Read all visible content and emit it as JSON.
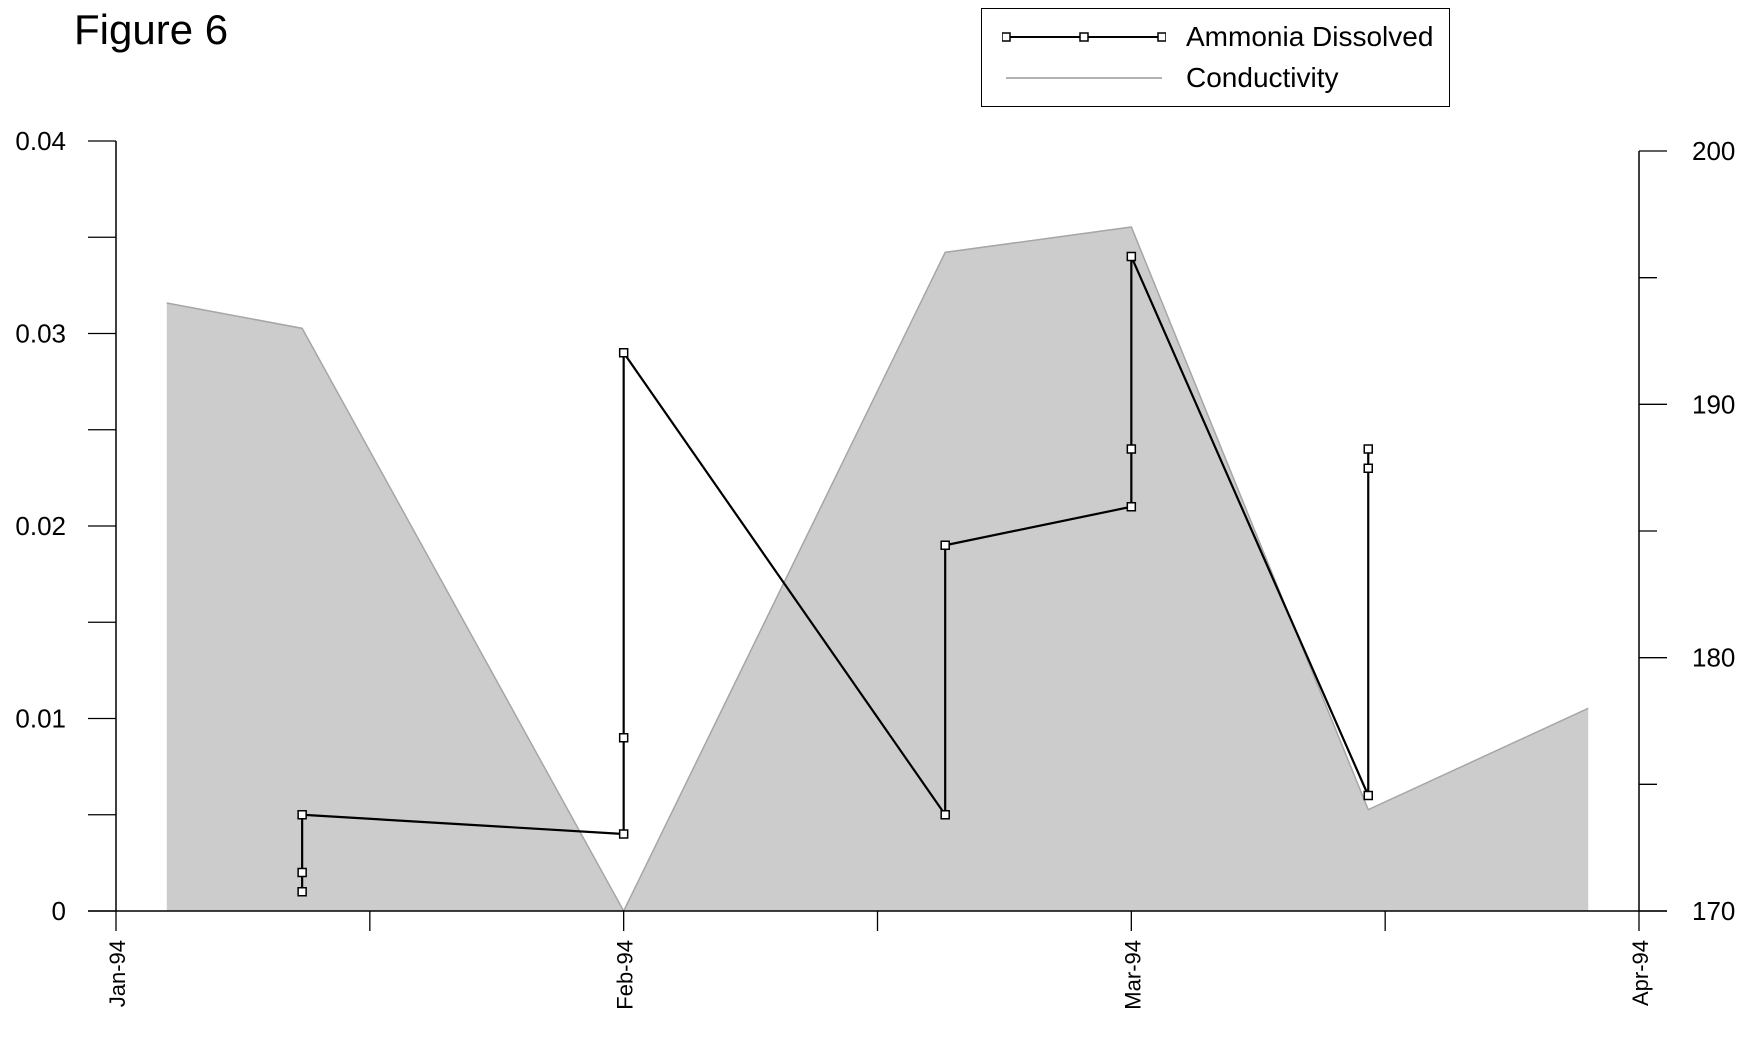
{
  "figure_label": "Figure 6",
  "legend": {
    "items": [
      {
        "label": "Ammonia Dissolved",
        "style": "line-square-markers",
        "color": "#000000"
      },
      {
        "label": "Conductivity",
        "style": "area",
        "color": "#cccccc"
      }
    ]
  },
  "chart_data": {
    "type": "line",
    "title": "",
    "xlabel": "",
    "ylabel": "",
    "y2label": "",
    "x_ticks": [
      "Jan-94",
      "Feb-94",
      "Mar-94",
      "Apr-94"
    ],
    "xlim": [
      "1994-01-01",
      "1994-04-01"
    ],
    "ylim": [
      0,
      0.04
    ],
    "y_ticks": [
      "0",
      "0.01",
      "0.02",
      "0.03",
      "0.04"
    ],
    "y2lim": [
      170,
      200
    ],
    "y2_ticks": [
      "170",
      "180",
      "190",
      "200"
    ],
    "grid": false,
    "legend_position": "top-right",
    "series": [
      {
        "name": "Ammonia Dissolved",
        "axis": "left",
        "type": "line",
        "marker": "square",
        "color": "#000000",
        "points": [
          {
            "x": "1994-01-12",
            "y": 0.001
          },
          {
            "x": "1994-01-12",
            "y": 0.002
          },
          {
            "x": "1994-01-12",
            "y": 0.005
          },
          {
            "x": "1994-01-31",
            "y": 0.004
          },
          {
            "x": "1994-01-31",
            "y": 0.009
          },
          {
            "x": "1994-01-31",
            "y": 0.029
          },
          {
            "x": "1994-02-19",
            "y": 0.005
          },
          {
            "x": "1994-02-19",
            "y": 0.019
          },
          {
            "x": "1994-03-02",
            "y": 0.021
          },
          {
            "x": "1994-03-02",
            "y": 0.024
          },
          {
            "x": "1994-03-02",
            "y": 0.034
          },
          {
            "x": "1994-03-16",
            "y": 0.006
          },
          {
            "x": "1994-03-16",
            "y": 0.023
          },
          {
            "x": "1994-03-16",
            "y": 0.024
          }
        ]
      },
      {
        "name": "Conductivity",
        "axis": "right",
        "type": "area",
        "color": "#cccccc",
        "points": [
          {
            "x": "1994-01-04",
            "y": 194
          },
          {
            "x": "1994-01-12",
            "y": 193
          },
          {
            "x": "1994-01-31",
            "y": 170
          },
          {
            "x": "1994-02-19",
            "y": 196
          },
          {
            "x": "1994-03-02",
            "y": 197
          },
          {
            "x": "1994-03-16",
            "y": 174
          },
          {
            "x": "1994-03-29",
            "y": 178
          }
        ]
      }
    ]
  }
}
